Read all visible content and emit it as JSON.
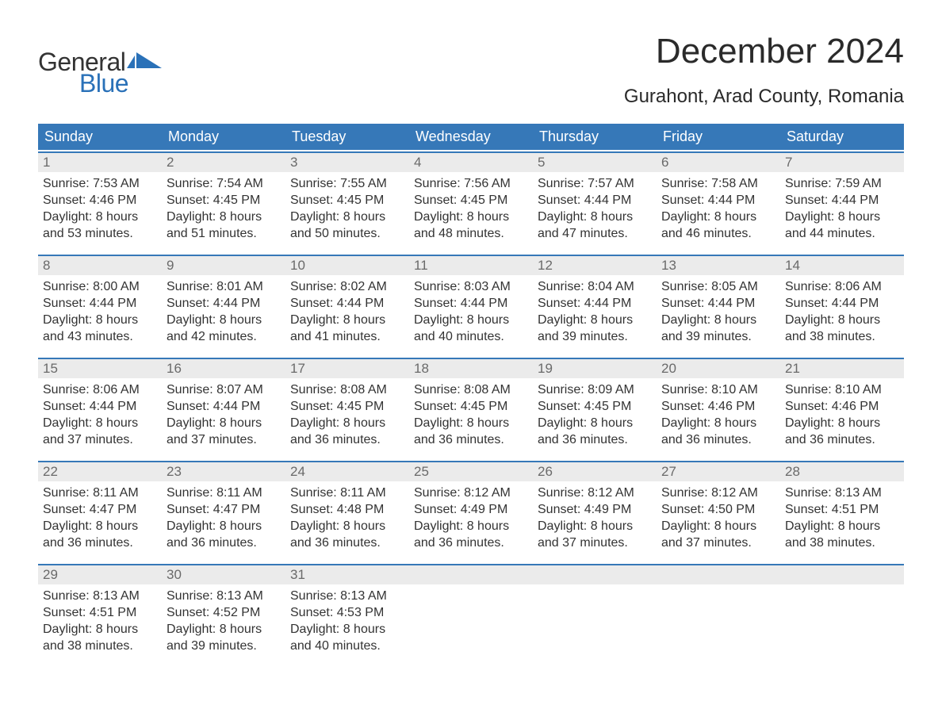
{
  "logo": {
    "text_general": "General",
    "text_blue": "Blue",
    "shape_color": "#2a71b8"
  },
  "title": "December 2024",
  "location": "Gurahont, Arad County, Romania",
  "colors": {
    "header_bg": "#3678b8",
    "header_text": "#ffffff",
    "daynum_bg": "#ebebeb",
    "daynum_border": "#3678b8",
    "daynum_text": "#6a6a6a",
    "body_text": "#333333",
    "page_bg": "#ffffff"
  },
  "day_headers": [
    "Sunday",
    "Monday",
    "Tuesday",
    "Wednesday",
    "Thursday",
    "Friday",
    "Saturday"
  ],
  "weeks": [
    [
      {
        "day": "1",
        "sunrise": "Sunrise: 7:53 AM",
        "sunset": "Sunset: 4:46 PM",
        "daylight1": "Daylight: 8 hours",
        "daylight2": "and 53 minutes."
      },
      {
        "day": "2",
        "sunrise": "Sunrise: 7:54 AM",
        "sunset": "Sunset: 4:45 PM",
        "daylight1": "Daylight: 8 hours",
        "daylight2": "and 51 minutes."
      },
      {
        "day": "3",
        "sunrise": "Sunrise: 7:55 AM",
        "sunset": "Sunset: 4:45 PM",
        "daylight1": "Daylight: 8 hours",
        "daylight2": "and 50 minutes."
      },
      {
        "day": "4",
        "sunrise": "Sunrise: 7:56 AM",
        "sunset": "Sunset: 4:45 PM",
        "daylight1": "Daylight: 8 hours",
        "daylight2": "and 48 minutes."
      },
      {
        "day": "5",
        "sunrise": "Sunrise: 7:57 AM",
        "sunset": "Sunset: 4:44 PM",
        "daylight1": "Daylight: 8 hours",
        "daylight2": "and 47 minutes."
      },
      {
        "day": "6",
        "sunrise": "Sunrise: 7:58 AM",
        "sunset": "Sunset: 4:44 PM",
        "daylight1": "Daylight: 8 hours",
        "daylight2": "and 46 minutes."
      },
      {
        "day": "7",
        "sunrise": "Sunrise: 7:59 AM",
        "sunset": "Sunset: 4:44 PM",
        "daylight1": "Daylight: 8 hours",
        "daylight2": "and 44 minutes."
      }
    ],
    [
      {
        "day": "8",
        "sunrise": "Sunrise: 8:00 AM",
        "sunset": "Sunset: 4:44 PM",
        "daylight1": "Daylight: 8 hours",
        "daylight2": "and 43 minutes."
      },
      {
        "day": "9",
        "sunrise": "Sunrise: 8:01 AM",
        "sunset": "Sunset: 4:44 PM",
        "daylight1": "Daylight: 8 hours",
        "daylight2": "and 42 minutes."
      },
      {
        "day": "10",
        "sunrise": "Sunrise: 8:02 AM",
        "sunset": "Sunset: 4:44 PM",
        "daylight1": "Daylight: 8 hours",
        "daylight2": "and 41 minutes."
      },
      {
        "day": "11",
        "sunrise": "Sunrise: 8:03 AM",
        "sunset": "Sunset: 4:44 PM",
        "daylight1": "Daylight: 8 hours",
        "daylight2": "and 40 minutes."
      },
      {
        "day": "12",
        "sunrise": "Sunrise: 8:04 AM",
        "sunset": "Sunset: 4:44 PM",
        "daylight1": "Daylight: 8 hours",
        "daylight2": "and 39 minutes."
      },
      {
        "day": "13",
        "sunrise": "Sunrise: 8:05 AM",
        "sunset": "Sunset: 4:44 PM",
        "daylight1": "Daylight: 8 hours",
        "daylight2": "and 39 minutes."
      },
      {
        "day": "14",
        "sunrise": "Sunrise: 8:06 AM",
        "sunset": "Sunset: 4:44 PM",
        "daylight1": "Daylight: 8 hours",
        "daylight2": "and 38 minutes."
      }
    ],
    [
      {
        "day": "15",
        "sunrise": "Sunrise: 8:06 AM",
        "sunset": "Sunset: 4:44 PM",
        "daylight1": "Daylight: 8 hours",
        "daylight2": "and 37 minutes."
      },
      {
        "day": "16",
        "sunrise": "Sunrise: 8:07 AM",
        "sunset": "Sunset: 4:44 PM",
        "daylight1": "Daylight: 8 hours",
        "daylight2": "and 37 minutes."
      },
      {
        "day": "17",
        "sunrise": "Sunrise: 8:08 AM",
        "sunset": "Sunset: 4:45 PM",
        "daylight1": "Daylight: 8 hours",
        "daylight2": "and 36 minutes."
      },
      {
        "day": "18",
        "sunrise": "Sunrise: 8:08 AM",
        "sunset": "Sunset: 4:45 PM",
        "daylight1": "Daylight: 8 hours",
        "daylight2": "and 36 minutes."
      },
      {
        "day": "19",
        "sunrise": "Sunrise: 8:09 AM",
        "sunset": "Sunset: 4:45 PM",
        "daylight1": "Daylight: 8 hours",
        "daylight2": "and 36 minutes."
      },
      {
        "day": "20",
        "sunrise": "Sunrise: 8:10 AM",
        "sunset": "Sunset: 4:46 PM",
        "daylight1": "Daylight: 8 hours",
        "daylight2": "and 36 minutes."
      },
      {
        "day": "21",
        "sunrise": "Sunrise: 8:10 AM",
        "sunset": "Sunset: 4:46 PM",
        "daylight1": "Daylight: 8 hours",
        "daylight2": "and 36 minutes."
      }
    ],
    [
      {
        "day": "22",
        "sunrise": "Sunrise: 8:11 AM",
        "sunset": "Sunset: 4:47 PM",
        "daylight1": "Daylight: 8 hours",
        "daylight2": "and 36 minutes."
      },
      {
        "day": "23",
        "sunrise": "Sunrise: 8:11 AM",
        "sunset": "Sunset: 4:47 PM",
        "daylight1": "Daylight: 8 hours",
        "daylight2": "and 36 minutes."
      },
      {
        "day": "24",
        "sunrise": "Sunrise: 8:11 AM",
        "sunset": "Sunset: 4:48 PM",
        "daylight1": "Daylight: 8 hours",
        "daylight2": "and 36 minutes."
      },
      {
        "day": "25",
        "sunrise": "Sunrise: 8:12 AM",
        "sunset": "Sunset: 4:49 PM",
        "daylight1": "Daylight: 8 hours",
        "daylight2": "and 36 minutes."
      },
      {
        "day": "26",
        "sunrise": "Sunrise: 8:12 AM",
        "sunset": "Sunset: 4:49 PM",
        "daylight1": "Daylight: 8 hours",
        "daylight2": "and 37 minutes."
      },
      {
        "day": "27",
        "sunrise": "Sunrise: 8:12 AM",
        "sunset": "Sunset: 4:50 PM",
        "daylight1": "Daylight: 8 hours",
        "daylight2": "and 37 minutes."
      },
      {
        "day": "28",
        "sunrise": "Sunrise: 8:13 AM",
        "sunset": "Sunset: 4:51 PM",
        "daylight1": "Daylight: 8 hours",
        "daylight2": "and 38 minutes."
      }
    ],
    [
      {
        "day": "29",
        "sunrise": "Sunrise: 8:13 AM",
        "sunset": "Sunset: 4:51 PM",
        "daylight1": "Daylight: 8 hours",
        "daylight2": "and 38 minutes."
      },
      {
        "day": "30",
        "sunrise": "Sunrise: 8:13 AM",
        "sunset": "Sunset: 4:52 PM",
        "daylight1": "Daylight: 8 hours",
        "daylight2": "and 39 minutes."
      },
      {
        "day": "31",
        "sunrise": "Sunrise: 8:13 AM",
        "sunset": "Sunset: 4:53 PM",
        "daylight1": "Daylight: 8 hours",
        "daylight2": "and 40 minutes."
      },
      {
        "day": "",
        "empty": true
      },
      {
        "day": "",
        "empty": true
      },
      {
        "day": "",
        "empty": true
      },
      {
        "day": "",
        "empty": true
      }
    ]
  ]
}
